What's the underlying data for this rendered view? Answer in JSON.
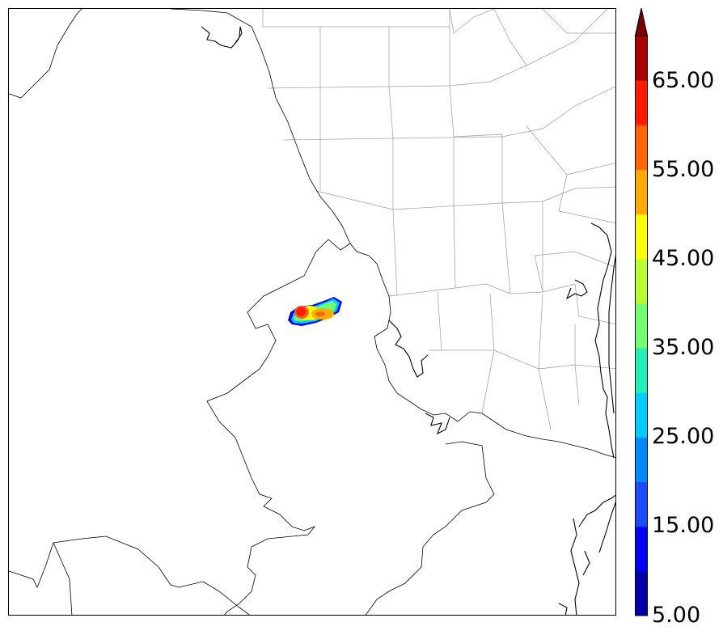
{
  "colorbar": {
    "levels": [
      5,
      10,
      15,
      20,
      25,
      30,
      35,
      40,
      45,
      50,
      55,
      60,
      65,
      70
    ],
    "colors": [
      "#0000a8",
      "#0000ff",
      "#1c4cff",
      "#0088ff",
      "#00ccff",
      "#20f0b8",
      "#70ff70",
      "#b8ff30",
      "#ffff00",
      "#ffaa00",
      "#ff6600",
      "#ff1a00",
      "#aa0000"
    ],
    "extend_color": "#7a0000",
    "tick_labels": [
      "5.00",
      "15.00",
      "25.00",
      "35.00",
      "45.00",
      "55.00",
      "65.00"
    ]
  },
  "colors": {
    "state_border": "#000000",
    "county_border": "#9a9a9a",
    "coastline": "#000000"
  }
}
